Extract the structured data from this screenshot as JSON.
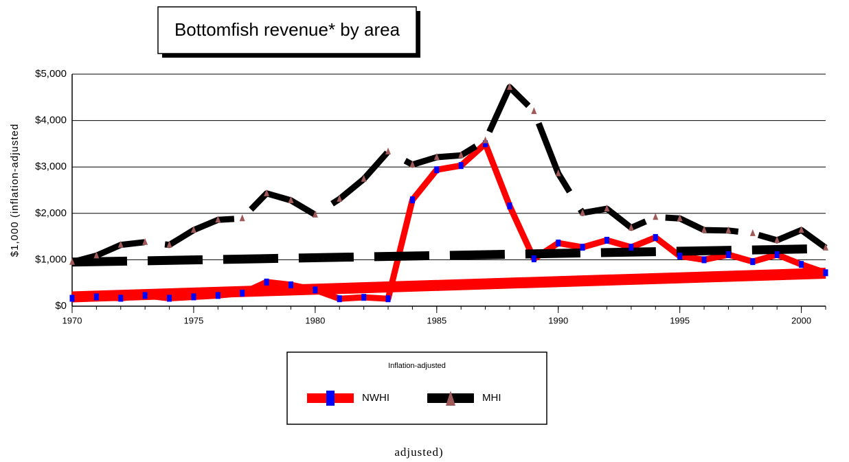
{
  "chart_data": {
    "type": "line",
    "title": "Bottomfish revenue*  by area",
    "y_label": "$1,000 (inflation-adjusted",
    "footnote": "adjusted)",
    "legend_title": "Inflation-adjusted",
    "x": [
      1970,
      1971,
      1972,
      1973,
      1974,
      1975,
      1976,
      1977,
      1978,
      1979,
      1980,
      1981,
      1982,
      1983,
      1984,
      1985,
      1986,
      1987,
      1988,
      1989,
      1990,
      1991,
      1992,
      1993,
      1994,
      1995,
      1996,
      1997,
      1998,
      1999,
      2000,
      2001
    ],
    "xlim": [
      1970,
      2001
    ],
    "xticks": [
      1970,
      1975,
      1980,
      1985,
      1990,
      1995,
      2000
    ],
    "ylim": [
      0,
      5000
    ],
    "yticks": [
      {
        "value": 0,
        "label": "$0"
      },
      {
        "value": 1000,
        "label": "$1,000"
      },
      {
        "value": 2000,
        "label": "$2,000"
      },
      {
        "value": 3000,
        "label": "$3,000"
      },
      {
        "value": 4000,
        "label": "$4,000"
      },
      {
        "value": 5000,
        "label": "$5,000"
      }
    ],
    "grid": true,
    "series": [
      {
        "name": "NWHI",
        "color": "#ff0000",
        "marker_color": "#0000ff",
        "marker": "square",
        "dashed": false,
        "values": [
          170,
          200,
          170,
          230,
          170,
          200,
          230,
          280,
          520,
          460,
          350,
          160,
          190,
          160,
          2290,
          2940,
          3030,
          3500,
          2160,
          1020,
          1360,
          1270,
          1420,
          1270,
          1480,
          1080,
          1000,
          1110,
          960,
          1110,
          900,
          720
        ],
        "trendline": [
          200,
          710
        ]
      },
      {
        "name": "MHI",
        "color": "#000000",
        "marker_color": "#a05a5a",
        "marker": "triangle",
        "dashed": true,
        "values": [
          950,
          1090,
          1320,
          1380,
          1320,
          1640,
          1860,
          1890,
          2430,
          2280,
          1970,
          2310,
          2740,
          3330,
          3050,
          3210,
          3250,
          3570,
          4720,
          4200,
          2860,
          2010,
          2100,
          1690,
          1920,
          1890,
          1640,
          1630,
          1570,
          1420,
          1640,
          1260
        ],
        "trendline": [
          950,
          1240
        ]
      }
    ]
  }
}
